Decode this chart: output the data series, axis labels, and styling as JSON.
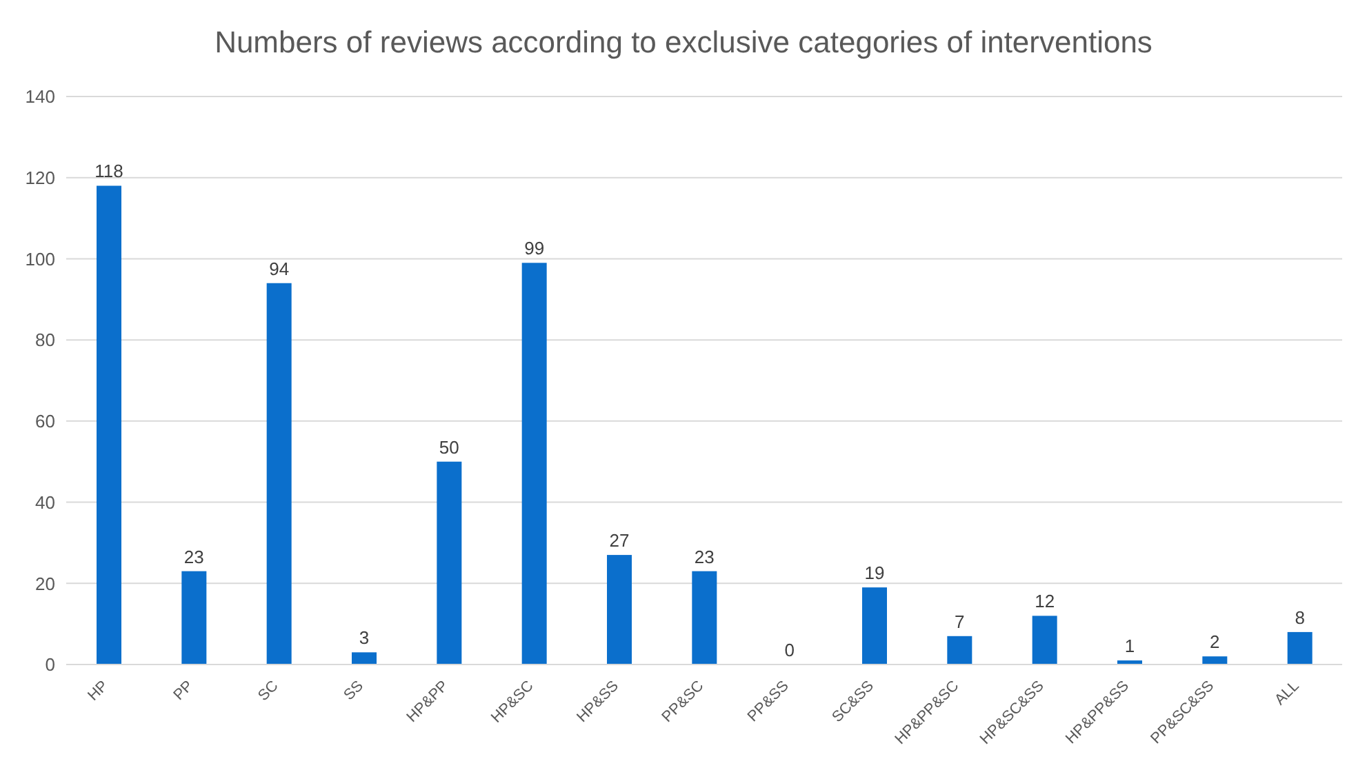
{
  "chart_data": {
    "type": "bar",
    "title": "Numbers of reviews according to exclusive categories of interventions",
    "categories": [
      "HP",
      "PP",
      "SC",
      "SS",
      "HP&PP",
      "HP&SC",
      "HP&SS",
      "PP&SC",
      "PP&SS",
      "SC&SS",
      "HP&PP&SC",
      "HP&SC&SS",
      "HP&PP&SS",
      "PP&SC&SS",
      "ALL"
    ],
    "values": [
      118,
      23,
      94,
      3,
      50,
      99,
      27,
      23,
      0,
      19,
      7,
      12,
      1,
      2,
      8
    ],
    "color": "#0b6fcc",
    "ylim": [
      0,
      140
    ],
    "yticks": [
      0,
      20,
      40,
      60,
      80,
      100,
      120,
      140
    ],
    "grid": "y",
    "data_labels": true
  }
}
